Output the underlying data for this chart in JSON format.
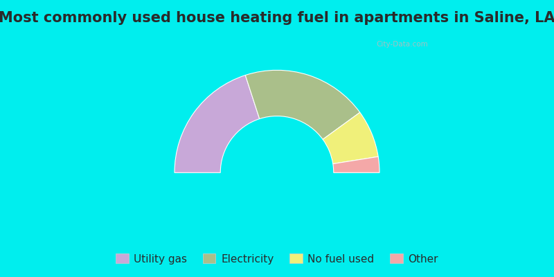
{
  "title": "Most commonly used house heating fuel in apartments in Saline, LA",
  "slices": [
    {
      "label": "Utility gas",
      "value": 40,
      "color": "#C8A8D8"
    },
    {
      "label": "Electricity",
      "value": 40,
      "color": "#AABF8A"
    },
    {
      "label": "No fuel used",
      "value": 15,
      "color": "#F0F07A"
    },
    {
      "label": "Other",
      "value": 5,
      "color": "#F4A8A8"
    }
  ],
  "background_color": "#00EEEE",
  "chart_bg_color": "#E8F5E2",
  "title_color": "#2A2A2A",
  "title_fontsize": 15,
  "legend_fontsize": 11,
  "watermark": "City-Data.com"
}
